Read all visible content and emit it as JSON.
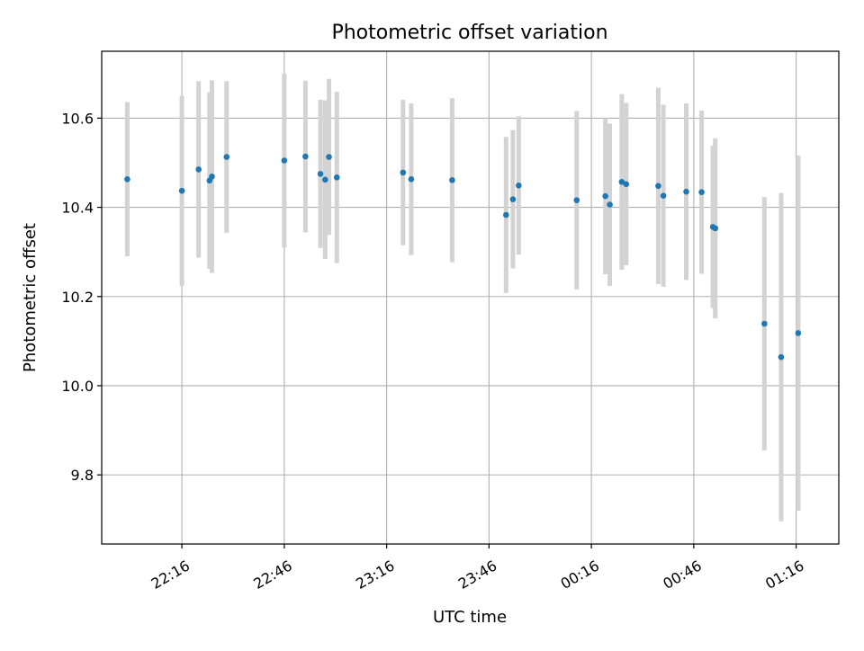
{
  "chart_data": {
    "type": "scatter",
    "title": "Photometric offset variation",
    "xlabel": "UTC time",
    "ylabel": "Photometric offset",
    "x_ticks": [
      "22:16",
      "22:46",
      "23:16",
      "23:46",
      "00:16",
      "00:46",
      "01:16"
    ],
    "y_ticks": [
      "9.8",
      "10.0",
      "10.2",
      "10.4",
      "10.6"
    ],
    "x_tick_minutes": [
      16,
      46,
      76,
      106,
      136,
      166,
      196
    ],
    "y_tick_values": [
      9.8,
      10.0,
      10.2,
      10.4,
      10.6
    ],
    "xlim_minutes": [
      -7.5,
      208.5
    ],
    "ylim": [
      9.645,
      10.75
    ],
    "grid": true,
    "colors": {
      "points": "#1f77b4",
      "error_bars": "#d3d3d3",
      "grid": "#b0b0b0"
    },
    "points": [
      {
        "t": 0.0,
        "y": 10.463,
        "err": 0.173
      },
      {
        "t": 16.0,
        "y": 10.437,
        "err": 0.213
      },
      {
        "t": 20.9,
        "y": 10.485,
        "err": 0.198
      },
      {
        "t": 24.1,
        "y": 10.46,
        "err": 0.198
      },
      {
        "t": 24.8,
        "y": 10.469,
        "err": 0.216
      },
      {
        "t": 29.1,
        "y": 10.513,
        "err": 0.17
      },
      {
        "t": 46.0,
        "y": 10.505,
        "err": 0.195
      },
      {
        "t": 52.2,
        "y": 10.514,
        "err": 0.17
      },
      {
        "t": 56.6,
        "y": 10.475,
        "err": 0.166
      },
      {
        "t": 58.0,
        "y": 10.462,
        "err": 0.178
      },
      {
        "t": 59.1,
        "y": 10.513,
        "err": 0.175
      },
      {
        "t": 61.4,
        "y": 10.467,
        "err": 0.192
      },
      {
        "t": 80.8,
        "y": 10.478,
        "err": 0.163
      },
      {
        "t": 83.2,
        "y": 10.463,
        "err": 0.17
      },
      {
        "t": 95.2,
        "y": 10.461,
        "err": 0.184
      },
      {
        "t": 111.0,
        "y": 10.383,
        "err": 0.175
      },
      {
        "t": 113.0,
        "y": 10.418,
        "err": 0.155
      },
      {
        "t": 114.7,
        "y": 10.449,
        "err": 0.155
      },
      {
        "t": 131.7,
        "y": 10.416,
        "err": 0.2
      },
      {
        "t": 140.1,
        "y": 10.425,
        "err": 0.175
      },
      {
        "t": 141.4,
        "y": 10.406,
        "err": 0.182
      },
      {
        "t": 144.9,
        "y": 10.457,
        "err": 0.197
      },
      {
        "t": 146.2,
        "y": 10.452,
        "err": 0.182
      },
      {
        "t": 155.6,
        "y": 10.448,
        "err": 0.22
      },
      {
        "t": 157.1,
        "y": 10.426,
        "err": 0.204
      },
      {
        "t": 163.8,
        "y": 10.435,
        "err": 0.198
      },
      {
        "t": 168.3,
        "y": 10.434,
        "err": 0.183
      },
      {
        "t": 171.6,
        "y": 10.356,
        "err": 0.182
      },
      {
        "t": 172.3,
        "y": 10.353,
        "err": 0.202
      },
      {
        "t": 186.7,
        "y": 10.139,
        "err": 0.284
      },
      {
        "t": 191.6,
        "y": 10.064,
        "err": 0.368
      },
      {
        "t": 196.6,
        "y": 10.118,
        "err": 0.398
      }
    ]
  }
}
